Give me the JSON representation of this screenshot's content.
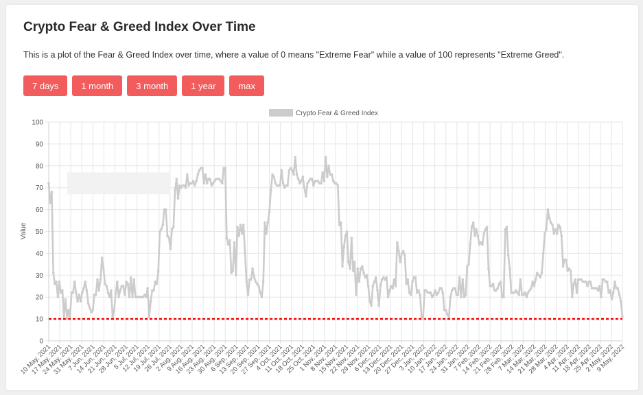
{
  "page": {
    "title": "Crypto Fear & Greed Index Over Time",
    "description": "This is a plot of the Fear & Greed Index over time, where a value of 0 means \"Extreme Fear\" while a value of 100 represents \"Extreme Greed\"."
  },
  "buttons": [
    {
      "label": "7 days"
    },
    {
      "label": "1 month"
    },
    {
      "label": "3 month"
    },
    {
      "label": "1 year"
    },
    {
      "label": "max"
    }
  ],
  "colors": {
    "accent": "#f25c5c",
    "series": "#cccccc",
    "threshold": "#ff0000"
  },
  "chart_data": {
    "type": "line",
    "title": "",
    "ylabel": "Value",
    "xlabel": "",
    "ylim": [
      0,
      100
    ],
    "yticks": [
      0,
      10,
      20,
      30,
      40,
      50,
      60,
      70,
      80,
      90,
      100
    ],
    "grid": true,
    "legend_position": "top-center",
    "x_tick_labels": [
      "10 May, 2021",
      "17 May, 2021",
      "24 May, 2021",
      "31 May, 2021",
      "7 Jun, 2021",
      "14 Jun, 2021",
      "21 Jun, 2021",
      "28 Jun, 2021",
      "5 Jul, 2021",
      "12 Jul, 2021",
      "19 Jul, 2021",
      "26 Jul, 2021",
      "2 Aug, 2021",
      "9 Aug, 2021",
      "16 Aug, 2021",
      "23 Aug, 2021",
      "30 Aug, 2021",
      "6 Sep, 2021",
      "13 Sep, 2021",
      "20 Sep, 2021",
      "27 Sep, 2021",
      "4 Oct, 2021",
      "11 Oct, 2021",
      "18 Oct, 2021",
      "25 Oct, 2021",
      "1 Nov, 2021",
      "8 Nov, 2021",
      "15 Nov, 2021",
      "22 Nov, 2021",
      "29 Nov, 2021",
      "6 Dec, 2021",
      "13 Dec, 2021",
      "20 Dec, 2021",
      "27 Dec, 2021",
      "3 Jan, 2022",
      "10 Jan, 2022",
      "17 Jan, 2022",
      "24 Jan, 2022",
      "31 Jan, 2022",
      "7 Feb, 2022",
      "14 Feb, 2022",
      "21 Feb, 2022",
      "28 Feb, 2022",
      "7 Mar, 2022",
      "14 Mar, 2022",
      "21 Mar, 2022",
      "28 Mar, 2022",
      "4 Apr, 2022",
      "11 Apr, 2022",
      "18 Apr, 2022",
      "25 Apr, 2022",
      "2 May, 2022",
      "9 May, 2022"
    ],
    "series": [
      {
        "name": "Crypto Fear & Greed Index",
        "values": [
          72,
          63,
          68,
          31,
          26,
          27,
          20,
          27,
          22,
          23,
          11,
          19,
          10,
          14,
          11,
          22,
          22,
          27,
          22,
          18,
          21,
          18,
          22,
          24,
          27,
          23,
          17,
          15,
          13,
          14,
          21,
          21,
          28,
          23,
          28,
          38,
          33,
          26,
          25,
          22,
          20,
          23,
          11,
          14,
          22,
          27,
          20,
          23,
          25,
          25,
          21,
          27,
          26,
          20,
          29,
          20,
          28,
          20,
          20,
          20,
          20,
          20,
          20,
          21,
          20,
          24,
          11,
          18,
          23,
          23,
          27,
          26,
          32,
          50,
          51,
          53,
          60,
          60,
          48,
          47,
          42,
          51,
          52,
          69,
          74,
          65,
          71,
          70,
          71,
          71,
          70,
          76,
          71,
          72,
          72,
          73,
          71,
          73,
          76,
          78,
          79,
          79,
          72,
          76,
          72,
          74,
          74,
          71,
          72,
          73,
          74,
          74,
          74,
          73,
          72,
          79,
          79,
          47,
          44,
          46,
          31,
          32,
          45,
          30,
          52,
          48,
          53,
          49,
          53,
          40,
          27,
          21,
          28,
          28,
          33,
          29,
          27,
          26,
          25,
          22,
          20,
          27,
          54,
          49,
          54,
          59,
          69,
          76,
          75,
          72,
          71,
          71,
          71,
          78,
          72,
          70,
          71,
          71,
          78,
          79,
          78,
          76,
          84,
          76,
          74,
          72,
          73,
          75,
          70,
          66,
          72,
          73,
          74,
          74,
          71,
          73,
          73,
          73,
          72,
          72,
          77,
          73,
          84,
          75,
          80,
          76,
          76,
          73,
          72,
          72,
          71,
          53,
          54,
          34,
          43,
          48,
          50,
          36,
          33,
          47,
          32,
          36,
          21,
          33,
          27,
          33,
          34,
          31,
          29,
          30,
          25,
          18,
          16,
          25,
          27,
          29,
          23,
          16,
          25,
          28,
          29,
          28,
          29,
          20,
          23,
          25,
          24,
          28,
          25,
          45,
          41,
          36,
          40,
          41,
          39,
          26,
          28,
          22,
          21,
          27,
          29,
          29,
          22,
          23,
          21,
          11,
          10,
          23,
          23,
          22,
          22,
          22,
          20,
          21,
          23,
          21,
          22,
          24,
          24,
          22,
          14,
          14,
          12,
          11,
          20,
          23,
          24,
          24,
          21,
          21,
          29,
          20,
          28,
          20,
          21,
          34,
          35,
          44,
          52,
          54,
          48,
          51,
          48,
          44,
          45,
          44,
          49,
          51,
          52,
          33,
          25,
          25,
          26,
          23,
          23,
          24,
          26,
          27,
          20,
          20,
          51,
          52,
          39,
          33,
          22,
          22,
          22,
          23,
          22,
          21,
          28,
          21,
          21,
          22,
          20,
          22,
          23,
          24,
          27,
          25,
          28,
          31,
          30,
          29,
          31,
          40,
          49,
          51,
          60,
          56,
          54,
          53,
          49,
          51,
          49,
          53,
          52,
          48,
          34,
          37,
          37,
          32,
          33,
          32,
          20,
          26,
          28,
          22,
          28,
          28,
          28,
          27,
          27,
          27,
          25,
          27,
          27,
          24,
          24,
          24,
          24,
          23,
          25,
          20,
          28,
          28,
          27,
          27,
          22,
          23,
          19,
          22,
          27,
          24,
          24,
          21,
          18,
          11
        ]
      }
    ],
    "threshold_line": 10,
    "highlight_band": [
      67,
      77
    ]
  }
}
